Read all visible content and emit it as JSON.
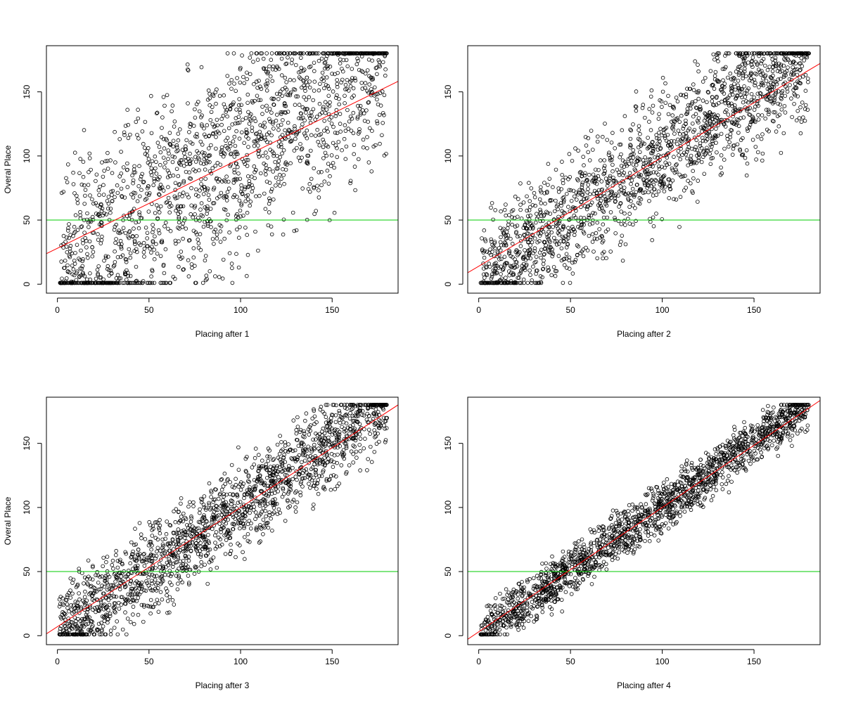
{
  "chart_data": [
    {
      "type": "scatter",
      "xlabel": "Placing after 1",
      "ylabel": "Overal Place",
      "xlim": [
        -6,
        186
      ],
      "ylim": [
        -7,
        186
      ],
      "xticks": [
        0,
        50,
        100,
        150
      ],
      "yticks": [
        0,
        50,
        100,
        150
      ],
      "point_count": 1800,
      "point_style": "open circle",
      "point_spread": 70,
      "regression_line": {
        "color": "#ff0000",
        "intercept": 28,
        "slope": 0.7
      },
      "hline": {
        "y": 50,
        "color": "#00cc00"
      }
    },
    {
      "type": "scatter",
      "xlabel": "Placing after 2",
      "ylabel": "",
      "xlim": [
        -6,
        186
      ],
      "ylim": [
        -7,
        186
      ],
      "xticks": [
        0,
        50,
        100,
        150
      ],
      "yticks": [
        0,
        50,
        100,
        150
      ],
      "point_count": 1800,
      "point_style": "open circle",
      "point_spread": 40,
      "regression_line": {
        "color": "#ff0000",
        "intercept": 14,
        "slope": 0.85
      },
      "hline": {
        "y": 50,
        "color": "#00cc00"
      }
    },
    {
      "type": "scatter",
      "xlabel": "Placing after 3",
      "ylabel": "Overal Place",
      "xlim": [
        -6,
        186
      ],
      "ylim": [
        -7,
        186
      ],
      "xticks": [
        0,
        50,
        100,
        150
      ],
      "yticks": [
        0,
        50,
        100,
        150
      ],
      "point_count": 1800,
      "point_style": "open circle",
      "point_spread": 28,
      "regression_line": {
        "color": "#ff0000",
        "intercept": 7,
        "slope": 0.93
      },
      "hline": {
        "y": 50,
        "color": "#00cc00"
      }
    },
    {
      "type": "scatter",
      "xlabel": "Placing after 4",
      "ylabel": "",
      "xlim": [
        -6,
        186
      ],
      "ylim": [
        -7,
        186
      ],
      "xticks": [
        0,
        50,
        100,
        150
      ],
      "yticks": [
        0,
        50,
        100,
        150
      ],
      "point_count": 1800,
      "point_style": "open circle",
      "point_spread": 16,
      "regression_line": {
        "color": "#ff0000",
        "intercept": 3,
        "slope": 0.97
      },
      "hline": {
        "y": 50,
        "color": "#00cc00"
      }
    }
  ]
}
